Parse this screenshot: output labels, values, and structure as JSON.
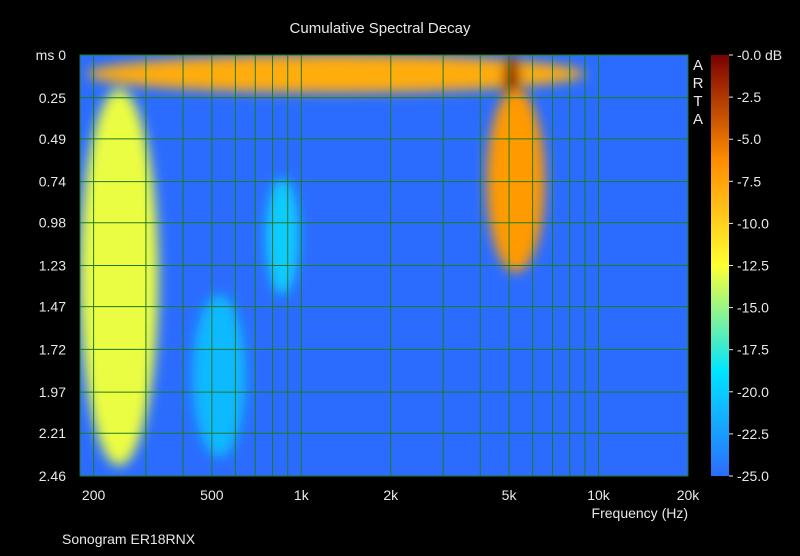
{
  "chart_data": {
    "type": "heatmap",
    "title": "Cumulative Spectral Decay",
    "xlabel": "Frequency (Hz)",
    "ylabel": "ms",
    "caption": "Sonogram ER18RNX",
    "watermark": "ARTA",
    "x_scale": "log",
    "x_range_hz": [
      180,
      20000
    ],
    "x_ticks": [
      {
        "value": 200,
        "label": "200"
      },
      {
        "value": 500,
        "label": "500"
      },
      {
        "value": 1000,
        "label": "1k"
      },
      {
        "value": 2000,
        "label": "2k"
      },
      {
        "value": 5000,
        "label": "5k"
      },
      {
        "value": 10000,
        "label": "10k"
      },
      {
        "value": 20000,
        "label": "20k"
      }
    ],
    "y_range_ms": [
      0,
      2.46
    ],
    "y_ticks": [
      {
        "value": 0,
        "label": "ms 0"
      },
      {
        "value": 0.25,
        "label": "0.25"
      },
      {
        "value": 0.49,
        "label": "0.49"
      },
      {
        "value": 0.74,
        "label": "0.74"
      },
      {
        "value": 0.98,
        "label": "0.98"
      },
      {
        "value": 1.23,
        "label": "1.23"
      },
      {
        "value": 1.47,
        "label": "1.47"
      },
      {
        "value": 1.72,
        "label": "1.72"
      },
      {
        "value": 1.97,
        "label": "1.97"
      },
      {
        "value": 2.21,
        "label": "2.21"
      },
      {
        "value": 2.46,
        "label": "2.46"
      }
    ],
    "colorbar": {
      "range_db": [
        -25,
        0
      ],
      "ticks": [
        {
          "value": 0,
          "label": "-0.0 dB"
        },
        {
          "value": -2.5,
          "label": "-2.5"
        },
        {
          "value": -5,
          "label": "-5.0"
        },
        {
          "value": -7.5,
          "label": "-7.5"
        },
        {
          "value": -10,
          "label": "-10.0"
        },
        {
          "value": -12.5,
          "label": "-12.5"
        },
        {
          "value": -15,
          "label": "-15.0"
        },
        {
          "value": -17.5,
          "label": "-17.5"
        },
        {
          "value": -20,
          "label": "-20.0"
        },
        {
          "value": -22.5,
          "label": "-22.5"
        },
        {
          "value": -25,
          "label": "-25.0"
        }
      ],
      "colors": [
        "#2b6cff",
        "#00e5ff",
        "#ffff33",
        "#ff8c00",
        "#7a0000"
      ]
    },
    "grid": true,
    "grid_color": "#1f7a1f",
    "background_level_db": -25,
    "features": [
      {
        "name": "initial response band",
        "freq_hz": [
          190,
          9000
        ],
        "time_ms": [
          0,
          0.22
        ],
        "level_db": -8
      },
      {
        "name": "peak near 5k",
        "freq_hz": [
          5100,
          5100
        ],
        "time_ms": [
          0,
          0.3
        ],
        "level_db": -0.5
      },
      {
        "name": "resonance decay near 5k",
        "freq_hz": [
          4200,
          6600
        ],
        "time_ms": [
          0.2,
          1.27
        ],
        "level_db": -7
      },
      {
        "name": "low frequency tail",
        "freq_hz": [
          180,
          330
        ],
        "time_ms": [
          0.2,
          2.4
        ],
        "level_db": -13
      },
      {
        "name": "ridge near 500 Hz",
        "freq_hz": [
          430,
          650
        ],
        "time_ms": [
          1.4,
          2.35
        ],
        "level_db": -21
      },
      {
        "name": "ridge near 850 Hz",
        "freq_hz": [
          760,
          980
        ],
        "time_ms": [
          0.72,
          1.4
        ],
        "level_db": -20
      }
    ]
  }
}
